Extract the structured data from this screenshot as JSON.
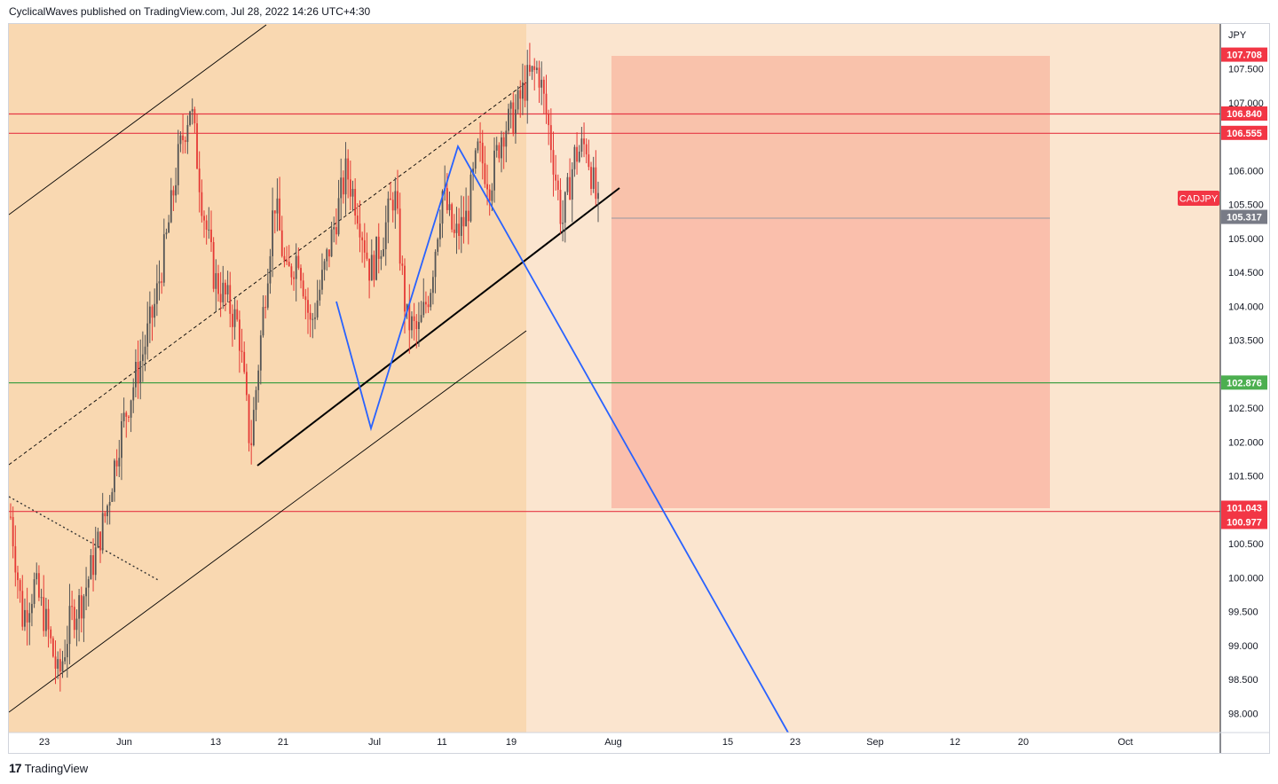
{
  "header": {
    "publish_line": "CyclicalWaves published on TradingView.com, Jul 28, 2022 14:26 UTC+4:30"
  },
  "footer": {
    "logo_text": "17",
    "brand": "TradingView"
  },
  "colors": {
    "bg": "#fbe5cf",
    "channel_fill": "#f9d8b1",
    "risk_box": "#f9a090",
    "red_line": "#e63946",
    "green_line": "#43a047",
    "blue_line": "#2962ff",
    "black_line": "#000000",
    "up_candle": "#555555",
    "down_candle": "#e53935",
    "price_tag_red": "#f23645",
    "price_tag_green": "#4caf50",
    "price_tag_gray": "#787b86"
  },
  "chart_data": {
    "type": "candlestick",
    "symbol": "CADJPY",
    "currency": "JPY",
    "x_ticks": [
      "23",
      "Jun",
      "13",
      "21",
      "Jul",
      "11",
      "19",
      "Aug",
      "15",
      "23",
      "Sep",
      "12",
      "20",
      "Oct"
    ],
    "y_ticks": [
      98.0,
      98.5,
      99.0,
      99.5,
      100.0,
      100.5,
      101.0,
      101.5,
      102.0,
      102.5,
      103.0,
      103.5,
      104.0,
      104.5,
      105.0,
      105.5,
      106.0,
      106.5,
      107.0,
      107.5
    ],
    "y_tick_labels": [
      "98.000",
      "98.500",
      "99.000",
      "99.500",
      "100.000",
      "100.500",
      "",
      "101.500",
      "102.000",
      "102.500",
      "",
      "103.500",
      "104.000",
      "104.500",
      "105.000",
      "105.500",
      "106.000",
      "",
      "107.000",
      "107.500"
    ],
    "ylim": [
      97.7,
      108.1
    ],
    "price_levels": [
      {
        "value": 107.708,
        "label": "107.708",
        "color": "red"
      },
      {
        "value": 106.84,
        "label": "106.840",
        "color": "red"
      },
      {
        "value": 106.555,
        "label": "106.555",
        "color": "red"
      },
      {
        "value": 105.317,
        "label": "105.317",
        "color": "gray"
      },
      {
        "value": 102.876,
        "label": "102.876",
        "color": "green"
      },
      {
        "value": 101.043,
        "label": "101.043",
        "color": "red"
      },
      {
        "value": 100.977,
        "label": "100.977",
        "color": "red"
      }
    ],
    "symbol_tag": "CADJPY",
    "price_path": [
      [
        "May 18",
        100.9
      ],
      [
        "May 20",
        99.4
      ],
      [
        "May 23",
        99.9
      ],
      [
        "May 25",
        99.3
      ],
      [
        "May 26",
        98.5
      ],
      [
        "May 27",
        99.4
      ],
      [
        "May 30",
        99.7
      ],
      [
        "May 31",
        100.3
      ],
      [
        "Jun 1",
        101.0
      ],
      [
        "Jun 2",
        102.0
      ],
      [
        "Jun 3",
        102.7
      ],
      [
        "Jun 6",
        103.3
      ],
      [
        "Jun 7",
        104.0
      ],
      [
        "Jun 8",
        105.0
      ],
      [
        "Jun 9",
        106.2
      ],
      [
        "Jun 10",
        107.0
      ],
      [
        "Jun 13",
        105.5
      ],
      [
        "Jun 14",
        104.4
      ],
      [
        "Jun 15",
        104.1
      ],
      [
        "Jun 16",
        103.7
      ],
      [
        "Jun 17",
        101.9
      ],
      [
        "Jun 20",
        103.8
      ],
      [
        "Jun 21",
        105.6
      ],
      [
        "Jun 22",
        104.4
      ],
      [
        "Jun 23",
        104.8
      ],
      [
        "Jun 24",
        103.7
      ],
      [
        "Jun 27",
        104.4
      ],
      [
        "Jun 28",
        105.2
      ],
      [
        "Jun 29",
        106.0
      ],
      [
        "Jun 30",
        105.4
      ],
      [
        "Jul 1",
        104.5
      ],
      [
        "Jul 4",
        105.0
      ],
      [
        "Jul 5",
        105.7
      ],
      [
        "Jul 6",
        103.8
      ],
      [
        "Jul 7",
        103.6
      ],
      [
        "Jul 8",
        104.3
      ],
      [
        "Jul 11",
        105.7
      ],
      [
        "Jul 12",
        105.0
      ],
      [
        "Jul 13",
        105.3
      ],
      [
        "Jul 14",
        106.3
      ],
      [
        "Jul 15",
        105.8
      ],
      [
        "Jul 18",
        106.6
      ],
      [
        "Jul 19",
        106.8
      ],
      [
        "Jul 20",
        107.3
      ],
      [
        "Jul 21",
        107.5
      ],
      [
        "Jul 22",
        106.5
      ],
      [
        "Jul 25",
        105.2
      ],
      [
        "Jul 26",
        106.2
      ],
      [
        "Jul 27",
        106.4
      ],
      [
        "Jul 28",
        105.4
      ]
    ]
  }
}
